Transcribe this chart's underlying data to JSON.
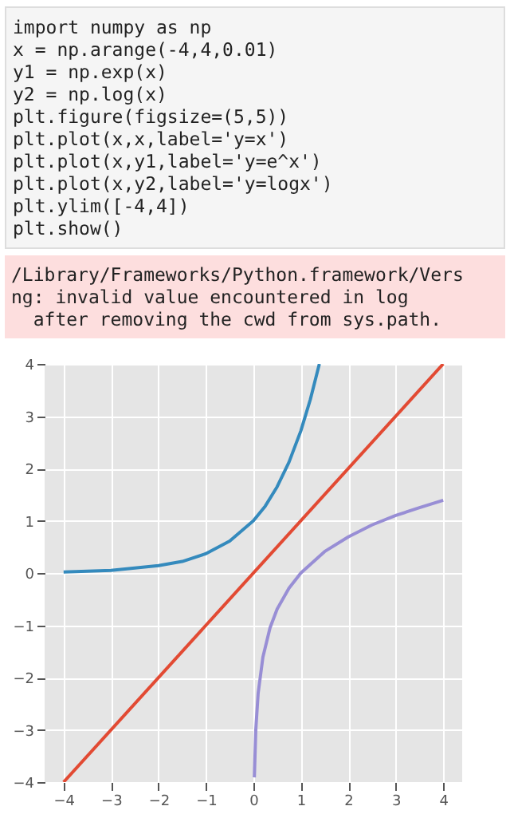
{
  "chart_data": {
    "type": "line",
    "annotations": [
      "import numpy as np\nx = np.arange(-4,4,0.01)\ny1 = np.exp(x)\ny2 = np.log(x)\nplt.figure(figsize=(5,5))\nplt.plot(x,x,label='y=x')\nplt.plot(x,y1,label='y=e^x')\nplt.plot(x,y2,label='y=logx')\nplt.ylim([-4,4])\nplt.show()",
      "/Library/Frameworks/Python.framework/Vers\nng: invalid value encountered in log\n  after removing the cwd from sys.path."
    ],
    "series": [
      {
        "color": "#e24a33",
        "x": [
          -4,
          4
        ],
        "values": [
          -4,
          4
        ]
      },
      {
        "color": "#348abd",
        "x": [
          -4,
          -3,
          -2,
          -1.5,
          -1,
          -0.5,
          0,
          0.25,
          0.5,
          0.75,
          1,
          1.2,
          1.39
        ],
        "values": [
          0.02,
          0.05,
          0.14,
          0.22,
          0.37,
          0.61,
          1,
          1.28,
          1.65,
          2.12,
          2.72,
          3.32,
          4
        ]
      },
      {
        "color": "#988ed5",
        "x": [
          0.02,
          0.05,
          0.1,
          0.2,
          0.35,
          0.5,
          0.75,
          1,
          1.5,
          2,
          2.5,
          3,
          3.5,
          4
        ],
        "values": [
          -3.91,
          -3,
          -2.3,
          -1.61,
          -1.05,
          -0.69,
          -0.29,
          0,
          0.41,
          0.69,
          0.92,
          1.1,
          1.25,
          1.39
        ]
      }
    ],
    "xlim": [
      -4.4,
      4.4
    ],
    "ylim": [
      -4,
      4
    ],
    "xticks": [
      -4,
      -3,
      -2,
      -1,
      0,
      1,
      2,
      3,
      4
    ],
    "yticks": [
      -4,
      -3,
      -2,
      -1,
      0,
      1,
      2,
      3,
      4
    ],
    "grid": true
  }
}
